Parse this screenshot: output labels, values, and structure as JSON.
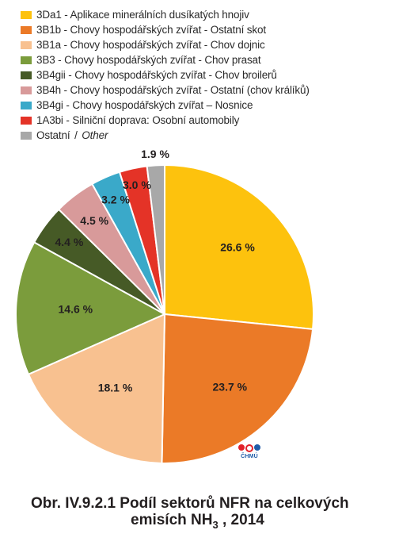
{
  "legend": [
    {
      "code": "3Da1",
      "label": "Aplikace minerálních dusíkatých hnojiv",
      "color": "#fdc20d"
    },
    {
      "code": "3B1b",
      "label": "Chovy hospodářských zvířat - Ostatní skot",
      "color": "#eb7a27"
    },
    {
      "code": "3B1a",
      "label": "Chovy hospodářských zvířat - Chov dojnic",
      "color": "#f8c190"
    },
    {
      "code": "3B3",
      "label": "Chovy hospodářských zvířat - Chov prasat",
      "color": "#7b9c3c"
    },
    {
      "code": "3B4gii",
      "label": "Chovy hospodářských zvířat - Chov broilerů",
      "color": "#465a26"
    },
    {
      "code": "3B4h",
      "label": "Chovy hospodářských zvířat - Ostatní (chov králíků)",
      "color": "#d89a9a"
    },
    {
      "code": "3B4gi",
      "label": "Chovy hospodářských zvířat – Nosnice",
      "color": "#3aa9c9"
    },
    {
      "code": "1A3bi",
      "label": "Silniční doprava: Osobní automobily",
      "color": "#e43327"
    },
    {
      "code": "Ostatní",
      "label": "Other",
      "color": "#a8a8a8"
    }
  ],
  "chart_data": {
    "type": "pie",
    "categories": [
      "3Da1 - Aplikace minerálních dusíkatých hnojiv",
      "3B1b - Chovy hospodářských zvířat - Ostatní skot",
      "3B1a - Chovy hospodářských zvířat - Chov dojnic",
      "3B3 - Chovy hospodářských zvířat - Chov prasat",
      "3B4gii - Chovy hospodářských zvířat - Chov broilerů",
      "3B4h - Chovy hospodářských zvířat - Ostatní (chov králíků)",
      "3B4gi - Chovy hospodářských zvířat – Nosnice",
      "1A3bi - Silniční doprava: Osobní automobily",
      "Ostatní / Other"
    ],
    "values": [
      26.6,
      23.7,
      18.1,
      14.6,
      4.4,
      4.5,
      3.2,
      3.0,
      1.9
    ],
    "labels": [
      "26.6 %",
      "23.7 %",
      "18.1 %",
      "14.6 %",
      "4.4 %",
      "4.5 %",
      "3.2 %",
      "3.0 %",
      "1.9 %"
    ],
    "colors": [
      "#fdc20d",
      "#eb7a27",
      "#f8c190",
      "#7b9c3c",
      "#465a26",
      "#d89a9a",
      "#3aa9c9",
      "#e43327",
      "#a8a8a8"
    ],
    "start": "12 o'clock",
    "direction": "clockwise",
    "legend_position": "top"
  },
  "logo": {
    "text": "ČHMÚ"
  },
  "caption": {
    "line1": "Obr. IV.9.2.1  Podíl sektorů NFR na celkových",
    "line2_prefix": "emisích NH",
    "line2_sub": "3",
    "line2_suffix": " , 2014"
  }
}
